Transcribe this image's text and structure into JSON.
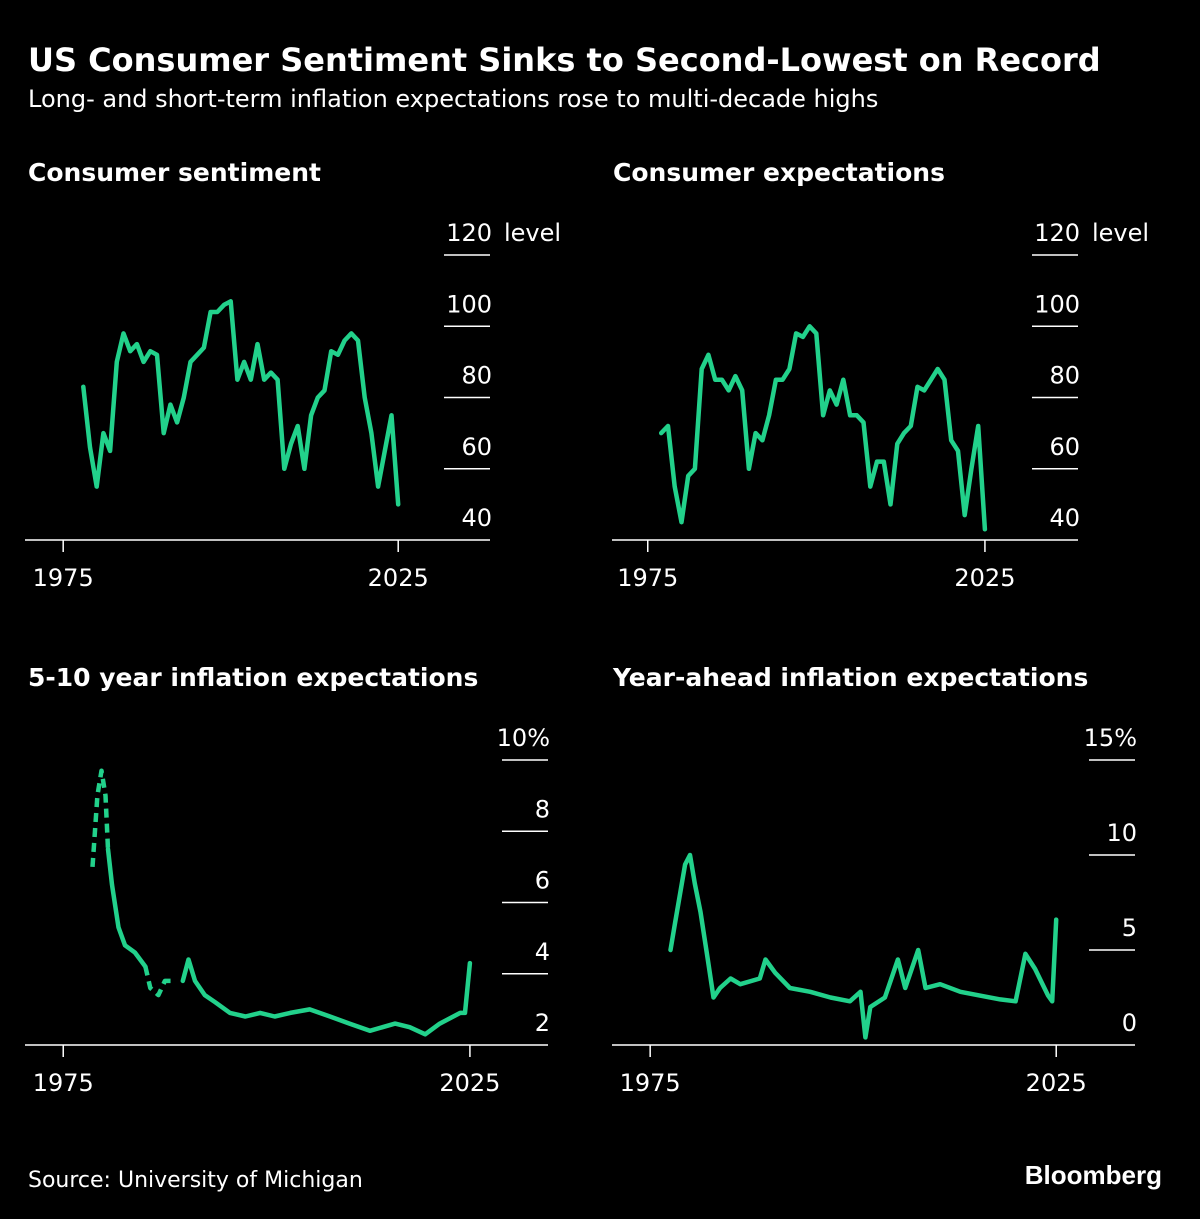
{
  "title": "US Consumer Sentiment Sinks to Second-Lowest on Record",
  "subtitle": "Long- and short-term inflation expectations rose to multi-decade highs",
  "source": "Source: University of Michigan",
  "logo": "Bloomberg",
  "chart_data": [
    {
      "type": "line",
      "title": "Consumer sentiment",
      "unit": "level",
      "x": [
        1978,
        1979,
        1980,
        1981,
        1982,
        1983,
        1984,
        1985,
        1986,
        1987,
        1988,
        1989,
        1990,
        1991,
        1992,
        1993,
        1994,
        1995,
        1996,
        1997,
        1998,
        1999,
        2000,
        2001,
        2002,
        2003,
        2004,
        2005,
        2006,
        2007,
        2008,
        2009,
        2010,
        2011,
        2012,
        2013,
        2014,
        2015,
        2016,
        2017,
        2018,
        2019,
        2020,
        2021,
        2022,
        2023,
        2024,
        2025
      ],
      "series": [
        {
          "color": "#22d18b",
          "values": [
            83,
            66,
            55,
            70,
            65,
            90,
            98,
            93,
            95,
            90,
            93,
            92,
            70,
            78,
            73,
            80,
            90,
            92,
            94,
            104,
            104,
            106,
            107,
            85,
            90,
            85,
            95,
            85,
            87,
            85,
            60,
            67,
            72,
            60,
            75,
            80,
            82,
            93,
            92,
            96,
            98,
            96,
            80,
            70,
            55,
            65,
            75,
            50
          ]
        }
      ],
      "xlim": [
        1969.3,
        2038.7
      ],
      "xticks": [
        1975,
        2025
      ],
      "ylim": [
        40,
        120
      ],
      "yticks": [
        40,
        60,
        80,
        100,
        120
      ]
    },
    {
      "type": "line",
      "title": "Consumer expectations",
      "unit": "level",
      "x": [
        1977,
        1978,
        1979,
        1980,
        1981,
        1982,
        1983,
        1984,
        1985,
        1986,
        1987,
        1988,
        1989,
        1990,
        1991,
        1992,
        1993,
        1994,
        1995,
        1996,
        1997,
        1998,
        1999,
        2000,
        2001,
        2002,
        2003,
        2004,
        2005,
        2006,
        2007,
        2008,
        2009,
        2010,
        2011,
        2012,
        2013,
        2014,
        2015,
        2016,
        2017,
        2018,
        2019,
        2020,
        2021,
        2022,
        2023,
        2024,
        2025
      ],
      "series": [
        {
          "color": "#22d18b",
          "values": [
            70,
            72,
            55,
            45,
            58,
            60,
            88,
            92,
            85,
            85,
            82,
            86,
            82,
            60,
            70,
            68,
            75,
            85,
            85,
            88,
            98,
            97,
            100,
            98,
            75,
            82,
            78,
            85,
            75,
            75,
            73,
            55,
            62,
            62,
            50,
            67,
            70,
            72,
            83,
            82,
            85,
            88,
            85,
            68,
            65,
            47,
            60,
            72,
            43
          ]
        }
      ],
      "xlim": [
        1969.7,
        2038.8
      ],
      "xticks": [
        1975,
        2025
      ],
      "ylim": [
        40,
        120
      ],
      "yticks": [
        40,
        60,
        80,
        100,
        120
      ]
    },
    {
      "type": "line",
      "title": "5-10 year inflation expectations",
      "x": [
        1978.6,
        1979.2,
        1979.7,
        1980.2,
        1980.5,
        1981.0,
        1981.8,
        1982.6,
        1983.8,
        1985.1,
        1985.7,
        1986.7,
        1987.5,
        1988.4,
        1989.7,
        1990.4,
        1991.2,
        1992.4,
        1993.7,
        1995.5,
        1997.4,
        1999.2,
        2001.0,
        2002.9,
        2005.3,
        2007.8,
        2010.2,
        2012.7,
        2015.8,
        2017.6,
        2019.5,
        2021.3,
        2023.8,
        2024.4,
        2025.0
      ],
      "series": [
        {
          "color": "#22d18b",
          "dash": true,
          "values": [
            7.0,
            9.0,
            9.7,
            9.0,
            7.5,
            null,
            null,
            null,
            null,
            4.2,
            3.6,
            3.4,
            3.8,
            3.8,
            null,
            null,
            null,
            null,
            null,
            null,
            null,
            null,
            null,
            null,
            null,
            null,
            null,
            null,
            null,
            null,
            null,
            null,
            null,
            null,
            null
          ]
        },
        {
          "color": "#22d18b",
          "values": [
            null,
            null,
            null,
            null,
            7.5,
            6.5,
            5.3,
            4.8,
            4.6,
            4.2,
            null,
            null,
            null,
            null,
            3.8,
            4.4,
            3.8,
            3.4,
            3.2,
            2.9,
            2.8,
            2.9,
            2.8,
            2.9,
            3.0,
            2.8,
            2.6,
            2.4,
            2.6,
            2.5,
            2.3,
            2.6,
            2.9,
            2.9,
            4.3
          ]
        }
      ],
      "xlim": [
        1970.3,
        2034.6
      ],
      "xticks": [
        1975,
        2025
      ],
      "ylim": [
        2,
        10
      ],
      "yticks": [
        2,
        4,
        6,
        8,
        {
          "value": 10,
          "label": "10%"
        }
      ]
    },
    {
      "type": "line",
      "title": "Year-ahead inflation expectations",
      "x": [
        1977.5,
        1978.1,
        1978.7,
        1979.3,
        1979.9,
        1980.5,
        1981.2,
        1982.1,
        1982.8,
        1983.6,
        1984.9,
        1986.1,
        1988.5,
        1989.2,
        1990.4,
        1992.2,
        1994.7,
        1997.2,
        1999.6,
        2000.9,
        2001.5,
        2002.1,
        2003.9,
        2005.5,
        2006.4,
        2008.0,
        2008.9,
        2010.7,
        2013.2,
        2015.6,
        2018.1,
        2020.0,
        2021.2,
        2022.4,
        2024.0,
        2024.5,
        2025.0
      ],
      "series": [
        {
          "color": "#22d18b",
          "values": [
            5.0,
            6.5,
            8.0,
            9.5,
            10.0,
            8.5,
            7.0,
            4.5,
            2.5,
            3.0,
            3.5,
            3.2,
            3.5,
            4.5,
            3.8,
            3.0,
            2.8,
            2.5,
            2.3,
            2.8,
            0.4,
            2.0,
            2.5,
            4.5,
            3.0,
            5.0,
            3.0,
            3.2,
            2.8,
            2.6,
            2.4,
            2.3,
            4.8,
            4.0,
            2.6,
            2.3,
            6.6
          ]
        }
      ],
      "xlim": [
        1970.3,
        2034.7
      ],
      "xticks": [
        1975,
        2025
      ],
      "ylim": [
        0,
        15
      ],
      "yticks": [
        0,
        5,
        10,
        {
          "value": 15,
          "label": "15%"
        }
      ]
    }
  ]
}
